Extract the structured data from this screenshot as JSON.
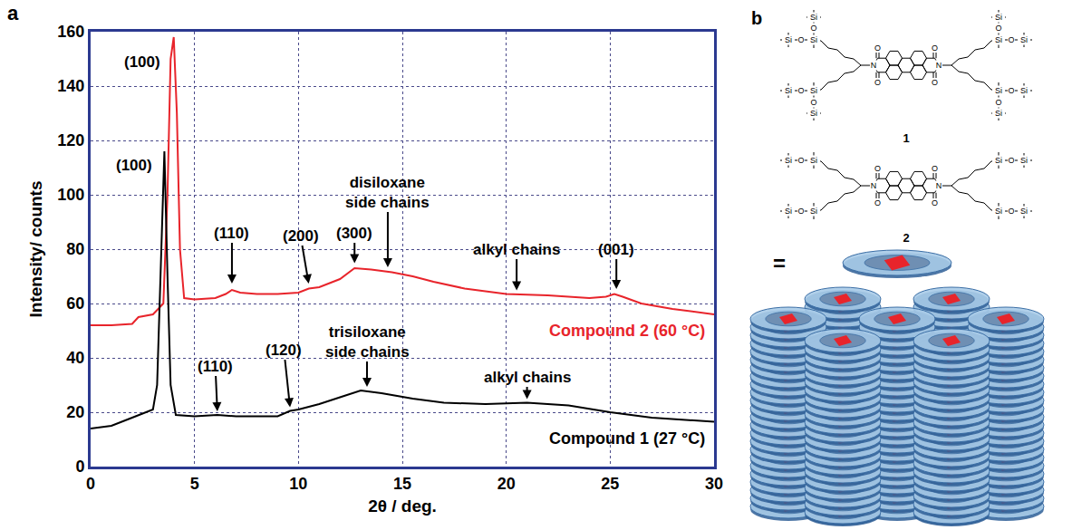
{
  "panel_label": "a",
  "chart_data": {
    "type": "line",
    "x_label": "2θ / deg.",
    "y_label": "Intensity/ counts",
    "xlim": [
      0,
      30
    ],
    "xticks": [
      0,
      5,
      10,
      15,
      20,
      25,
      30
    ],
    "ylim": [
      0,
      160
    ],
    "yticks": [
      0,
      20,
      40,
      60,
      80,
      100,
      120,
      140,
      160
    ],
    "grid": true,
    "series": [
      {
        "name": "Compound 2 (60 °C)",
        "color": "#e8242b",
        "x": [
          0,
          1,
          2,
          2.3,
          3,
          3.5,
          3.7,
          3.85,
          4.0,
          4.15,
          4.3,
          4.5,
          5,
          6,
          6.5,
          6.8,
          7.2,
          8,
          9,
          10,
          10.5,
          11,
          12,
          12.7,
          13.5,
          14.5,
          15.5,
          16.5,
          18,
          20,
          22,
          24,
          24.8,
          25.2,
          25.6,
          26.5,
          28,
          30
        ],
        "values": [
          52,
          52,
          52.5,
          55,
          56,
          60,
          100,
          150,
          158,
          130,
          80,
          62,
          61.5,
          62,
          63.5,
          65,
          64,
          63.5,
          63.5,
          64,
          65.5,
          66,
          69,
          73,
          72.5,
          71.5,
          70,
          68,
          65.5,
          63.5,
          63,
          62,
          62.5,
          63.5,
          62.5,
          60,
          58,
          56
        ]
      },
      {
        "name": "Compound 1 (27 °C)",
        "color": "#000000",
        "x": [
          0,
          1,
          2,
          2.5,
          3,
          3.2,
          3.4,
          3.55,
          3.7,
          3.85,
          4.1,
          5,
          6.1,
          7,
          9,
          9.6,
          10,
          11,
          12,
          13,
          14,
          15.5,
          17,
          19,
          21,
          23,
          25,
          27,
          30
        ],
        "values": [
          14,
          15,
          18,
          19.5,
          21,
          30,
          80,
          116,
          70,
          30,
          19,
          18.5,
          19,
          18.5,
          18.5,
          20.5,
          21,
          23,
          25.5,
          28,
          27,
          25,
          23.5,
          23,
          23.5,
          22.5,
          20,
          18,
          16.5
        ]
      }
    ],
    "annotations": [
      {
        "text": "(100)",
        "x": 2.5,
        "y": 149
      },
      {
        "text": "(100)",
        "x": 2.1,
        "y": 111
      },
      {
        "text": "(110)",
        "x": 6.8,
        "y": 67,
        "text_x": 6.8,
        "text_y": 86
      },
      {
        "text": "(200)",
        "x": 10.5,
        "y": 67,
        "text_x": 10.1,
        "text_y": 85
      },
      {
        "text": "(300)",
        "x": 12.7,
        "y": 74.5,
        "text_x": 12.7,
        "text_y": 86
      },
      {
        "text": "disiloxane side chains",
        "x": 14.3,
        "y": 73,
        "text_x": 14.3,
        "text_y": 101
      },
      {
        "text": "alkyl chains",
        "x": 20.5,
        "y": 64.5,
        "text_x": 20.5,
        "text_y": 80
      },
      {
        "text": "(001)",
        "x": 25.3,
        "y": 65,
        "text_x": 25.3,
        "text_y": 80
      },
      {
        "text": "(110)",
        "x": 6.1,
        "y": 20,
        "text_x": 6.0,
        "text_y": 37
      },
      {
        "text": "(120)",
        "x": 9.6,
        "y": 21.5,
        "text_x": 9.3,
        "text_y": 43
      },
      {
        "text": "trisiloxane side chains",
        "x": 13.3,
        "y": 29,
        "text_x": 13.3,
        "text_y": 46
      },
      {
        "text": "alkyl chains",
        "x": 21,
        "y": 24.5,
        "text_x": 21,
        "text_y": 33
      }
    ]
  },
  "diagram": {
    "label": "b",
    "atoms": {
      "nitrogen": "N",
      "oxygen": "O",
      "silicon": "Si"
    },
    "structures": [
      {
        "number": "1",
        "silicon_atoms": 3
      },
      {
        "number": "2",
        "silicon_atoms": 2
      }
    ],
    "equals": "="
  }
}
